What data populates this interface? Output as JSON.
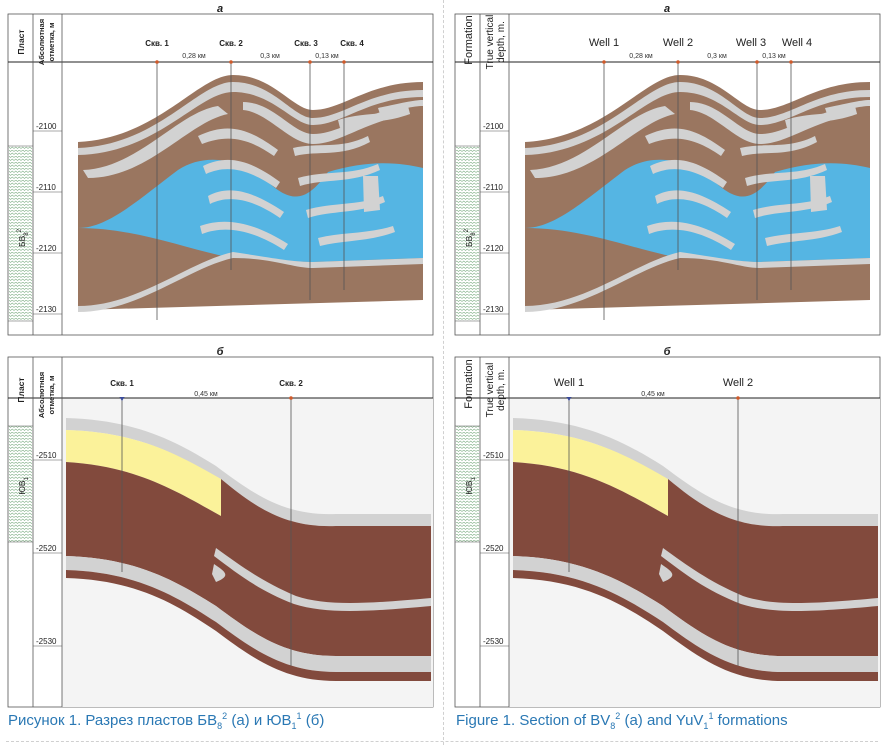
{
  "colors": {
    "shale": "#9a7660",
    "water": "#55b5e3",
    "sandstone": "#d2d2d2",
    "clay_dark": "#824a3d",
    "oil": "#fbf29a",
    "well_marker": "#d05a2a",
    "well_marker_b1": "#3a4a9a",
    "caption": "#2a78b4",
    "hatch": "#7fae85"
  },
  "panels": {
    "a_ru": {
      "label": "а",
      "col_formation": "Пласт",
      "col_depth_line1": "Абсолютная",
      "col_depth_line2": "отметка, м",
      "formation_label": "БВ",
      "formation_sub": "8",
      "formation_sup": "2",
      "depth_ticks": [
        "-2100",
        "-2110",
        "-2120",
        "-2130"
      ],
      "wells": [
        "Скв. 1",
        "Скв. 2",
        "Скв. 3",
        "Скв. 4"
      ],
      "distances": [
        "0,28 км",
        "0,3 км",
        "0,13 км"
      ]
    },
    "a_en": {
      "label": "а",
      "col_formation": "Formation",
      "col_depth_line1": "True vertical",
      "col_depth_line2": "depth, m.",
      "formation_label": "БВ",
      "formation_sub": "8",
      "formation_sup": "2",
      "depth_ticks": [
        "-2100",
        "-2110",
        "-2120",
        "-2130"
      ],
      "wells": [
        "Well 1",
        "Well 2",
        "Well 3",
        "Well 4"
      ],
      "distances": [
        "0,28 км",
        "0,3 км",
        "0,13 км"
      ]
    },
    "b_ru": {
      "label": "б",
      "col_formation": "Пласт",
      "col_depth_line1": "Абсолютная",
      "col_depth_line2": "отметка, м",
      "formation_label": "ЮВ",
      "formation_sub": "1",
      "formation_sup": "",
      "depth_ticks": [
        "-2510",
        "-2520",
        "-2530"
      ],
      "wells": [
        "Скв. 1",
        "Скв. 2"
      ],
      "distances": [
        "0,45 км"
      ]
    },
    "b_en": {
      "label": "б",
      "col_formation": "Formation",
      "col_depth_line1": "True vertical",
      "col_depth_line2": "depth, m.",
      "formation_label": "ЮВ",
      "formation_sub": "1",
      "formation_sup": "",
      "depth_ticks": [
        "-2510",
        "-2520",
        "-2530"
      ],
      "wells": [
        "Well 1",
        "Well 2"
      ],
      "distances": [
        "0,45 км"
      ]
    }
  },
  "captions": {
    "ru": {
      "prefix": "Рисунок 1.",
      "text1": " Разрез пластов БВ",
      "sub1": "8",
      "sup1": "2",
      "text2": " (а) и ЮВ",
      "sub2": "1",
      "sup2": "1",
      "text3": " (б)"
    },
    "en": {
      "prefix": "Figure 1.",
      "text1": " Section of BV",
      "sub1": "8",
      "sup1": "2",
      "text2": " (a) and YuV",
      "sub2": "1",
      "sup2": "1",
      "text3": " formations"
    }
  }
}
